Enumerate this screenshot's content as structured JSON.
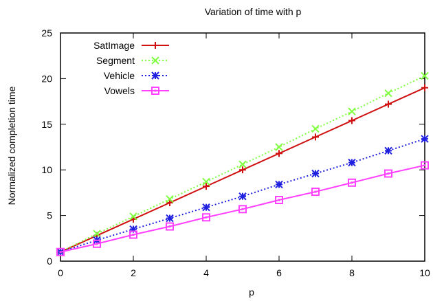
{
  "chart_data": {
    "type": "line",
    "title": "Variation of time with p",
    "xlabel": "p",
    "ylabel": "Normalized completion time",
    "xlim": [
      0,
      10
    ],
    "ylim": [
      0,
      25
    ],
    "xticks": [
      0,
      2,
      4,
      6,
      8,
      10
    ],
    "yticks": [
      0,
      5,
      10,
      15,
      20,
      25
    ],
    "legend_position": "top-left",
    "x": [
      0,
      1,
      2,
      3,
      4,
      5,
      6,
      7,
      8,
      9,
      10
    ],
    "series": [
      {
        "name": "SatImage",
        "color": "#d01010",
        "marker": "plus",
        "dash": "solid",
        "values": [
          1.0,
          2.8,
          4.6,
          6.4,
          8.2,
          10.0,
          11.8,
          13.6,
          15.4,
          17.2,
          19.0
        ]
      },
      {
        "name": "Segment",
        "color": "#80ff40",
        "marker": "cross",
        "dash": "dotted",
        "values": [
          1.0,
          3.0,
          4.9,
          6.8,
          8.7,
          10.6,
          12.5,
          14.5,
          16.4,
          18.4,
          20.3
        ]
      },
      {
        "name": "Vehicle",
        "color": "#2020e0",
        "marker": "star",
        "dash": "dotted",
        "values": [
          1.0,
          2.3,
          3.5,
          4.7,
          5.9,
          7.1,
          8.4,
          9.6,
          10.8,
          12.1,
          13.4
        ]
      },
      {
        "name": "Vowels",
        "color": "#ff40ff",
        "marker": "square",
        "dash": "solid",
        "values": [
          1.0,
          1.9,
          2.9,
          3.8,
          4.8,
          5.7,
          6.7,
          7.6,
          8.6,
          9.6,
          10.5
        ]
      }
    ]
  }
}
